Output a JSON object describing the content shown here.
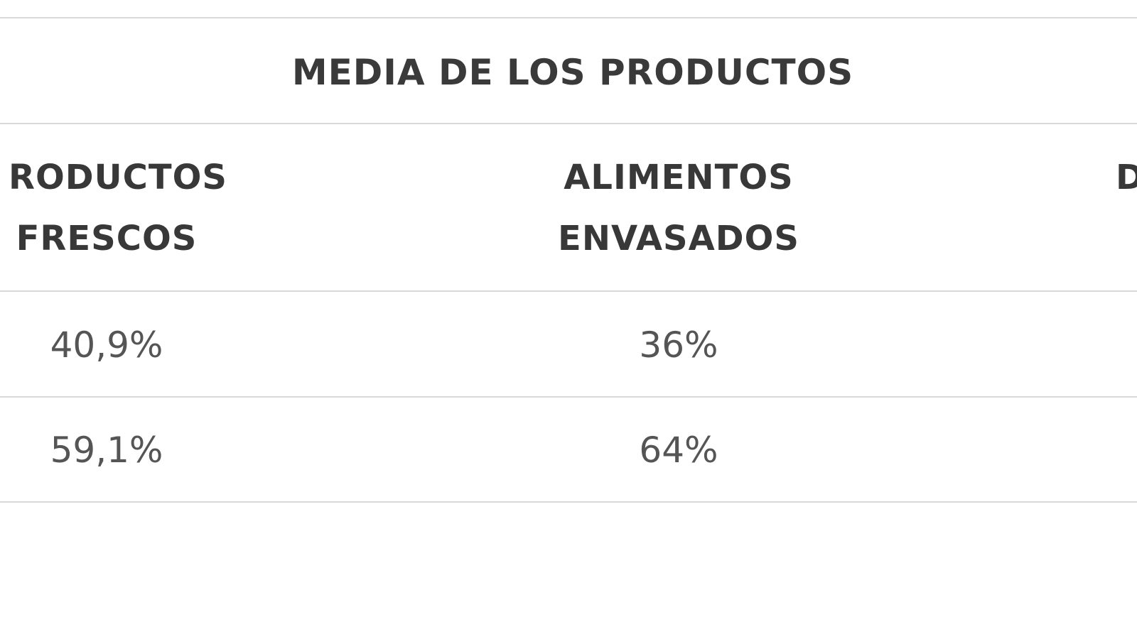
{
  "title": "MEDIA DE LOS PRODUCTOS",
  "table": {
    "header": [
      [
        "RODUCTOS",
        "FRESCOS"
      ],
      [
        "ALIMENTOS",
        "ENVASADOS"
      ],
      [
        "D"
      ]
    ],
    "rows": [
      [
        "40,9%",
        "36%"
      ],
      [
        "59,1%",
        "64%"
      ]
    ]
  }
}
